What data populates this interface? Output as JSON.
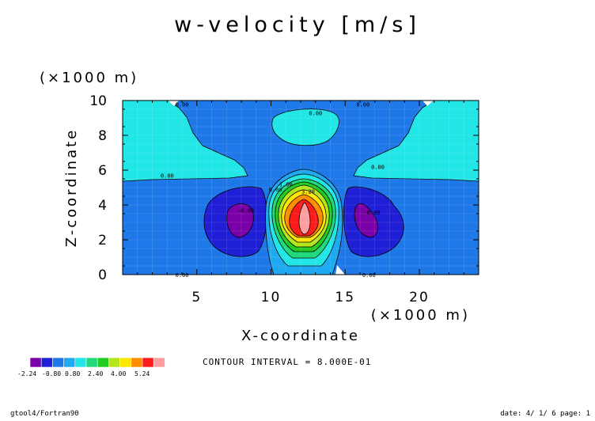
{
  "chart_data": {
    "type": "contour",
    "title": "w-velocity [m/s]",
    "xlabel": "X-coordinate",
    "ylabel": "Z-coordinate",
    "x_unit": "(×1000 m)",
    "y_unit": "(×1000 m)",
    "xlim": [
      0,
      24
    ],
    "ylim": [
      0,
      10
    ],
    "xticks": [
      5,
      10,
      15,
      20
    ],
    "yticks": [
      0,
      2,
      4,
      6,
      8,
      10
    ],
    "contour_interval_text": "CONTOUR INTERVAL = 8.000E-01",
    "colorbar": {
      "colors": [
        "#7a00a8",
        "#1f1fd6",
        "#1f78e8",
        "#1fa9f0",
        "#22e6e6",
        "#1fd97a",
        "#22cc22",
        "#b5e61d",
        "#ffe600",
        "#ff8c00",
        "#ff1a1a",
        "#ff9ea0"
      ],
      "labels": [
        "-2.24",
        "-0.80",
        "0.80",
        "2.40",
        "4.00",
        "5.24"
      ]
    },
    "contour_labels": [
      {
        "text": "0.00",
        "x": 4.0,
        "y": 9.8
      },
      {
        "text": "0.00",
        "x": 13.0,
        "y": 9.3
      },
      {
        "text": "0.00",
        "x": 16.2,
        "y": 9.8
      },
      {
        "text": "0.00",
        "x": 3.0,
        "y": 5.7
      },
      {
        "text": "0.00",
        "x": 17.2,
        "y": 6.2
      },
      {
        "text": "0.00",
        "x": 10.3,
        "y": 4.9
      },
      {
        "text": "1.60",
        "x": 11.0,
        "y": 5.2
      },
      {
        "text": "3.20",
        "x": 12.5,
        "y": 4.8
      },
      {
        "text": "-0.80",
        "x": 8.3,
        "y": 3.7
      },
      {
        "text": "-0.80",
        "x": 16.8,
        "y": 3.6
      },
      {
        "text": "0.00",
        "x": 4.0,
        "y": 0.0
      },
      {
        "text": "0.00",
        "x": 16.6,
        "y": 0.0
      }
    ]
  },
  "footer": {
    "left": "gtool4/Fortran90",
    "right": "date: 4/ 1/ 6 page: 1"
  }
}
